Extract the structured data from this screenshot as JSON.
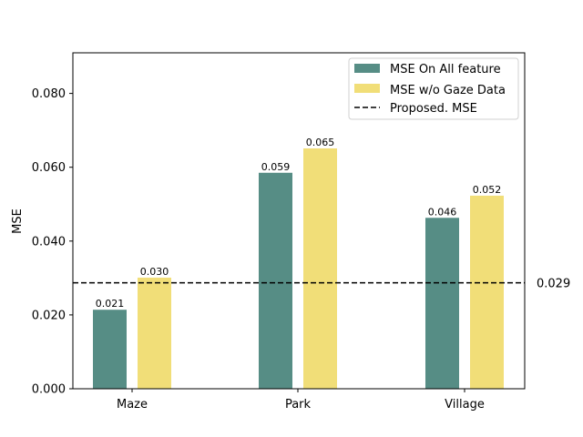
{
  "chart_data": {
    "type": "bar",
    "categories": [
      "Maze",
      "Park",
      "Village"
    ],
    "series": [
      {
        "name": "MSE On All feature",
        "values": [
          0.021,
          0.059,
          0.046
        ],
        "plot_values": [
          0.0214,
          0.0585,
          0.0463
        ],
        "color": "#568d85"
      },
      {
        "name": "MSE w/o Gaze Data",
        "values": [
          0.03,
          0.065,
          0.052
        ],
        "plot_values": [
          0.0301,
          0.0651,
          0.0523
        ],
        "color": "#f1de78"
      }
    ],
    "reference_line": {
      "name": "Proposed. MSE",
      "value": 0.029,
      "plot_value": 0.0287,
      "label": "0.029",
      "style": "dashed",
      "color": "#000000"
    },
    "title": "",
    "xlabel": "",
    "ylabel": "MSE",
    "ylim": [
      0,
      0.091
    ],
    "yticks": [
      "0.000",
      "0.020",
      "0.040",
      "0.060",
      "0.080"
    ],
    "ytick_values": [
      0,
      0.02,
      0.04,
      0.06,
      0.08
    ],
    "grid": false,
    "legend_position": "top-right"
  }
}
